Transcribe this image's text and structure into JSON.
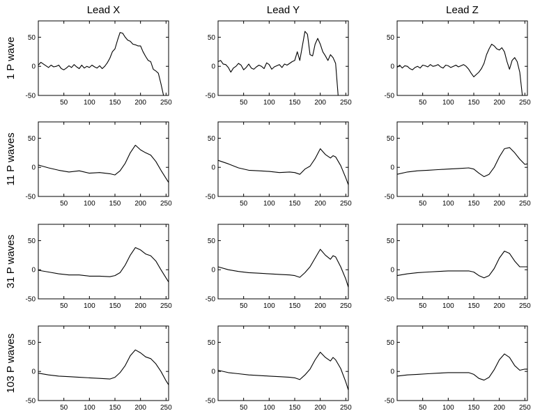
{
  "chart_data": {
    "type": "line",
    "columns": [
      "Lead X",
      "Lead Y",
      "Lead Z"
    ],
    "rows": [
      "1 P wave",
      "11 P waves",
      "31 P waves",
      "103 P waves"
    ],
    "xlim": [
      0,
      255
    ],
    "ylim": [
      -50,
      78
    ],
    "xticks": [
      50,
      100,
      150,
      200,
      250
    ],
    "yticks": [
      -50,
      0,
      50
    ],
    "panels": [
      [
        {
          "row": "1 P wave",
          "lead": "Lead X",
          "x": [
            0,
            5,
            10,
            15,
            20,
            25,
            30,
            35,
            40,
            45,
            50,
            55,
            60,
            65,
            70,
            75,
            80,
            85,
            90,
            95,
            100,
            105,
            110,
            115,
            120,
            125,
            130,
            135,
            140,
            145,
            150,
            155,
            160,
            165,
            170,
            175,
            180,
            185,
            190,
            195,
            200,
            205,
            210,
            215,
            220,
            225,
            230,
            235,
            240,
            245
          ],
          "y": [
            2,
            7,
            4,
            1,
            -2,
            2,
            -1,
            0,
            2,
            -4,
            -6,
            -3,
            1,
            -2,
            3,
            -1,
            -4,
            2,
            -3,
            0,
            -2,
            2,
            -1,
            -3,
            1,
            -4,
            0,
            6,
            14,
            25,
            30,
            45,
            58,
            57,
            50,
            45,
            43,
            38,
            37,
            35,
            35,
            25,
            17,
            10,
            8,
            -5,
            -8,
            -12,
            -30,
            -50
          ]
        },
        {
          "row": "1 P wave",
          "lead": "Lead Y",
          "x": [
            0,
            5,
            10,
            15,
            20,
            25,
            30,
            35,
            40,
            45,
            50,
            55,
            60,
            65,
            70,
            75,
            80,
            85,
            90,
            95,
            100,
            105,
            110,
            115,
            120,
            125,
            130,
            135,
            140,
            145,
            150,
            155,
            160,
            165,
            170,
            175,
            180,
            185,
            190,
            195,
            200,
            205,
            210,
            215,
            220,
            225,
            230,
            235
          ],
          "y": [
            8,
            10,
            4,
            3,
            -2,
            -10,
            -3,
            0,
            5,
            2,
            -6,
            -2,
            4,
            -3,
            -5,
            -1,
            2,
            0,
            -4,
            6,
            3,
            -5,
            -1,
            1,
            3,
            -2,
            4,
            2,
            5,
            8,
            10,
            25,
            10,
            35,
            60,
            55,
            20,
            18,
            38,
            48,
            38,
            25,
            18,
            10,
            20,
            15,
            5,
            -50
          ]
        },
        {
          "row": "1 P wave",
          "lead": "Lead Z",
          "x": [
            0,
            5,
            10,
            15,
            20,
            25,
            30,
            35,
            40,
            45,
            50,
            55,
            60,
            65,
            70,
            75,
            80,
            85,
            90,
            95,
            100,
            105,
            110,
            115,
            120,
            125,
            130,
            135,
            140,
            145,
            150,
            155,
            160,
            165,
            170,
            175,
            180,
            185,
            190,
            195,
            200,
            205,
            210,
            215,
            220,
            225,
            230,
            235,
            240,
            245
          ],
          "y": [
            -2,
            2,
            -3,
            1,
            0,
            -4,
            -6,
            -2,
            0,
            -3,
            2,
            1,
            -1,
            3,
            0,
            1,
            3,
            -1,
            -3,
            2,
            1,
            -2,
            0,
            2,
            -1,
            1,
            3,
            0,
            -5,
            -12,
            -18,
            -14,
            -10,
            -4,
            5,
            20,
            30,
            38,
            35,
            30,
            28,
            32,
            25,
            8,
            -5,
            10,
            15,
            8,
            -10,
            -50
          ]
        }
      ],
      [
        {
          "row": "11 P waves",
          "lead": "Lead X",
          "x": [
            0,
            20,
            40,
            60,
            80,
            100,
            120,
            140,
            150,
            160,
            170,
            180,
            190,
            200,
            210,
            220,
            230,
            240,
            250,
            255
          ],
          "y": [
            4,
            -1,
            -5,
            -8,
            -6,
            -10,
            -9,
            -11,
            -13,
            -6,
            7,
            25,
            38,
            30,
            25,
            21,
            10,
            -5,
            -19,
            -26
          ]
        },
        {
          "row": "11 P waves",
          "lead": "Lead Y",
          "x": [
            0,
            20,
            40,
            60,
            80,
            100,
            120,
            140,
            150,
            160,
            170,
            180,
            190,
            200,
            210,
            220,
            225,
            230,
            240,
            250,
            255
          ],
          "y": [
            12,
            6,
            -1,
            -5,
            -6,
            -7,
            -9,
            -8,
            -9,
            -12,
            -3,
            2,
            15,
            32,
            22,
            16,
            20,
            18,
            3,
            -18,
            -30
          ]
        },
        {
          "row": "11 P waves",
          "lead": "Lead Z",
          "x": [
            0,
            20,
            40,
            60,
            80,
            100,
            120,
            140,
            150,
            160,
            170,
            180,
            190,
            200,
            210,
            220,
            230,
            240,
            250,
            255
          ],
          "y": [
            -12,
            -8,
            -6,
            -5,
            -4,
            -3,
            -2,
            -1,
            -3,
            -10,
            -16,
            -12,
            0,
            18,
            32,
            34,
            25,
            14,
            5,
            6
          ]
        }
      ],
      [
        {
          "row": "31 P waves",
          "lead": "Lead X",
          "x": [
            0,
            20,
            40,
            60,
            80,
            100,
            120,
            140,
            150,
            160,
            170,
            180,
            190,
            200,
            210,
            220,
            230,
            240,
            250,
            255
          ],
          "y": [
            -1,
            -4,
            -7,
            -9,
            -9,
            -11,
            -11,
            -12,
            -10,
            -5,
            8,
            25,
            38,
            34,
            27,
            24,
            15,
            0,
            -14,
            -21
          ]
        },
        {
          "row": "31 P waves",
          "lead": "Lead Y",
          "x": [
            0,
            20,
            40,
            60,
            80,
            100,
            120,
            140,
            150,
            160,
            170,
            180,
            190,
            200,
            210,
            220,
            225,
            230,
            240,
            250,
            255
          ],
          "y": [
            5,
            0,
            -3,
            -5,
            -6,
            -7,
            -8,
            -9,
            -10,
            -13,
            -5,
            5,
            20,
            35,
            25,
            18,
            24,
            22,
            5,
            -16,
            -30
          ]
        },
        {
          "row": "31 P waves",
          "lead": "Lead Z",
          "x": [
            0,
            20,
            40,
            60,
            80,
            100,
            120,
            140,
            150,
            160,
            170,
            180,
            190,
            200,
            210,
            220,
            230,
            240,
            250,
            255
          ],
          "y": [
            -10,
            -7,
            -5,
            -4,
            -3,
            -2,
            -2,
            -2,
            -4,
            -10,
            -14,
            -10,
            2,
            20,
            32,
            28,
            15,
            5,
            5,
            5
          ]
        }
      ],
      [
        {
          "row": "103 P waves",
          "lead": "Lead X",
          "x": [
            0,
            20,
            40,
            60,
            80,
            100,
            120,
            140,
            150,
            160,
            170,
            180,
            190,
            200,
            210,
            220,
            230,
            240,
            250,
            255
          ],
          "y": [
            -3,
            -6,
            -8,
            -9,
            -10,
            -11,
            -12,
            -13,
            -10,
            -2,
            10,
            27,
            37,
            32,
            25,
            22,
            13,
            0,
            -16,
            -23
          ]
        },
        {
          "row": "103 P waves",
          "lead": "Lead Y",
          "x": [
            0,
            20,
            40,
            60,
            80,
            100,
            120,
            140,
            150,
            160,
            170,
            180,
            190,
            200,
            210,
            220,
            225,
            230,
            240,
            250,
            255
          ],
          "y": [
            2,
            -2,
            -4,
            -6,
            -7,
            -8,
            -9,
            -10,
            -11,
            -14,
            -6,
            4,
            20,
            33,
            24,
            18,
            24,
            20,
            5,
            -18,
            -32
          ]
        },
        {
          "row": "103 P waves",
          "lead": "Lead Z",
          "x": [
            0,
            20,
            40,
            60,
            80,
            100,
            120,
            140,
            150,
            160,
            170,
            180,
            190,
            200,
            210,
            220,
            230,
            240,
            250,
            255
          ],
          "y": [
            -8,
            -6,
            -5,
            -4,
            -3,
            -2,
            -2,
            -2,
            -5,
            -12,
            -15,
            -10,
            3,
            20,
            30,
            24,
            10,
            2,
            4,
            4
          ]
        }
      ]
    ]
  }
}
